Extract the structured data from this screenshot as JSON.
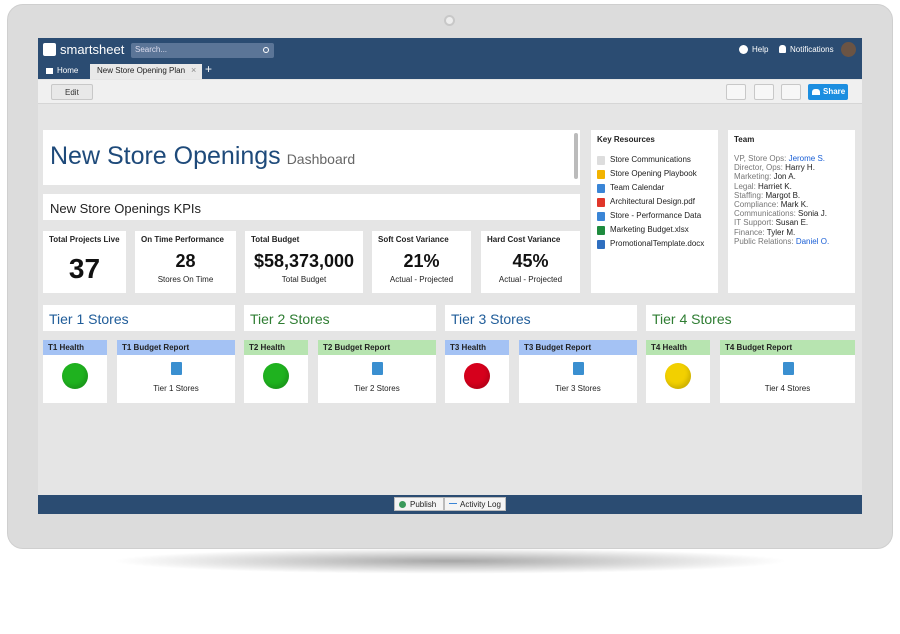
{
  "app": {
    "brand": "smartsheet",
    "search_placeholder": "Search...",
    "help": "Help",
    "notifications": "Notifications"
  },
  "tabs": [
    "Home",
    "New Store Opening Plan"
  ],
  "toolbar": {
    "edit": "Edit",
    "share": "Share"
  },
  "dashboard": {
    "title": "New Store Openings",
    "subtitle": "Dashboard",
    "kpi_heading": "New Store Openings KPIs"
  },
  "kpis": [
    {
      "label": "Total Projects Live",
      "value": "37"
    },
    {
      "label": "On Time Performance",
      "value": "28",
      "caption": "Stores On Time"
    },
    {
      "label": "Total Budget",
      "value": "$58,373,000",
      "caption": "Total Budget"
    },
    {
      "label": "Soft Cost Variance",
      "value": "21%",
      "caption": "Actual - Projected"
    },
    {
      "label": "Hard Cost Variance",
      "value": "45%",
      "caption": "Actual - Projected"
    }
  ],
  "resources": {
    "title": "Key Resources",
    "items": [
      "Store Communications",
      "Store Opening Playbook",
      "Team Calendar",
      "Architectural Design.pdf",
      "Store - Performance Data",
      "Marketing Budget.xlsx",
      "PromotionalTemplate.docx"
    ]
  },
  "team": {
    "title": "Team",
    "members": [
      {
        "role": "VP, Store Ops:",
        "name": "Jerome S.",
        "link": true
      },
      {
        "role": "Director, Ops:",
        "name": "Harry H."
      },
      {
        "role": "Marketing:",
        "name": "Jon A."
      },
      {
        "role": "Legal:",
        "name": "Harriet K."
      },
      {
        "role": "Staffing:",
        "name": "Margot B."
      },
      {
        "role": "Compliance:",
        "name": "Mark K."
      },
      {
        "role": "Communications:",
        "name": "Sonia J."
      },
      {
        "role": "IT Support:",
        "name": "Susan E."
      },
      {
        "role": "Finance:",
        "name": "Tyler M."
      },
      {
        "role": "Public Relations:",
        "name": "Daniel O.",
        "link": true
      }
    ]
  },
  "tiers": [
    {
      "title": "Tier 1 Stores",
      "health_label": "T1 Health",
      "report_label": "T1 Budget Report",
      "report_caption": "Tier 1 Stores",
      "health_color": "#1fb21f",
      "header_color": "#a4c2f4",
      "title_color": "#1f5c99"
    },
    {
      "title": "Tier 2 Stores",
      "health_label": "T2 Health",
      "report_label": "T2 Budget Report",
      "report_caption": "Tier 2 Stores",
      "health_color": "#1fb21f",
      "header_color": "#b7e4b0",
      "title_color": "#2e7d32"
    },
    {
      "title": "Tier 3 Stores",
      "health_label": "T3 Health",
      "report_label": "T3 Budget Report",
      "report_caption": "Tier 3 Stores",
      "health_color": "#d6001c",
      "header_color": "#a4c2f4",
      "title_color": "#1f5c99"
    },
    {
      "title": "Tier 4 Stores",
      "health_label": "T4 Health",
      "report_label": "T4 Budget Report",
      "report_caption": "Tier 4 Stores",
      "health_color": "#f2d000",
      "header_color": "#b7e4b0",
      "title_color": "#2e7d32"
    }
  ],
  "footer": {
    "publish": "Publish",
    "activity_log": "Activity Log"
  }
}
